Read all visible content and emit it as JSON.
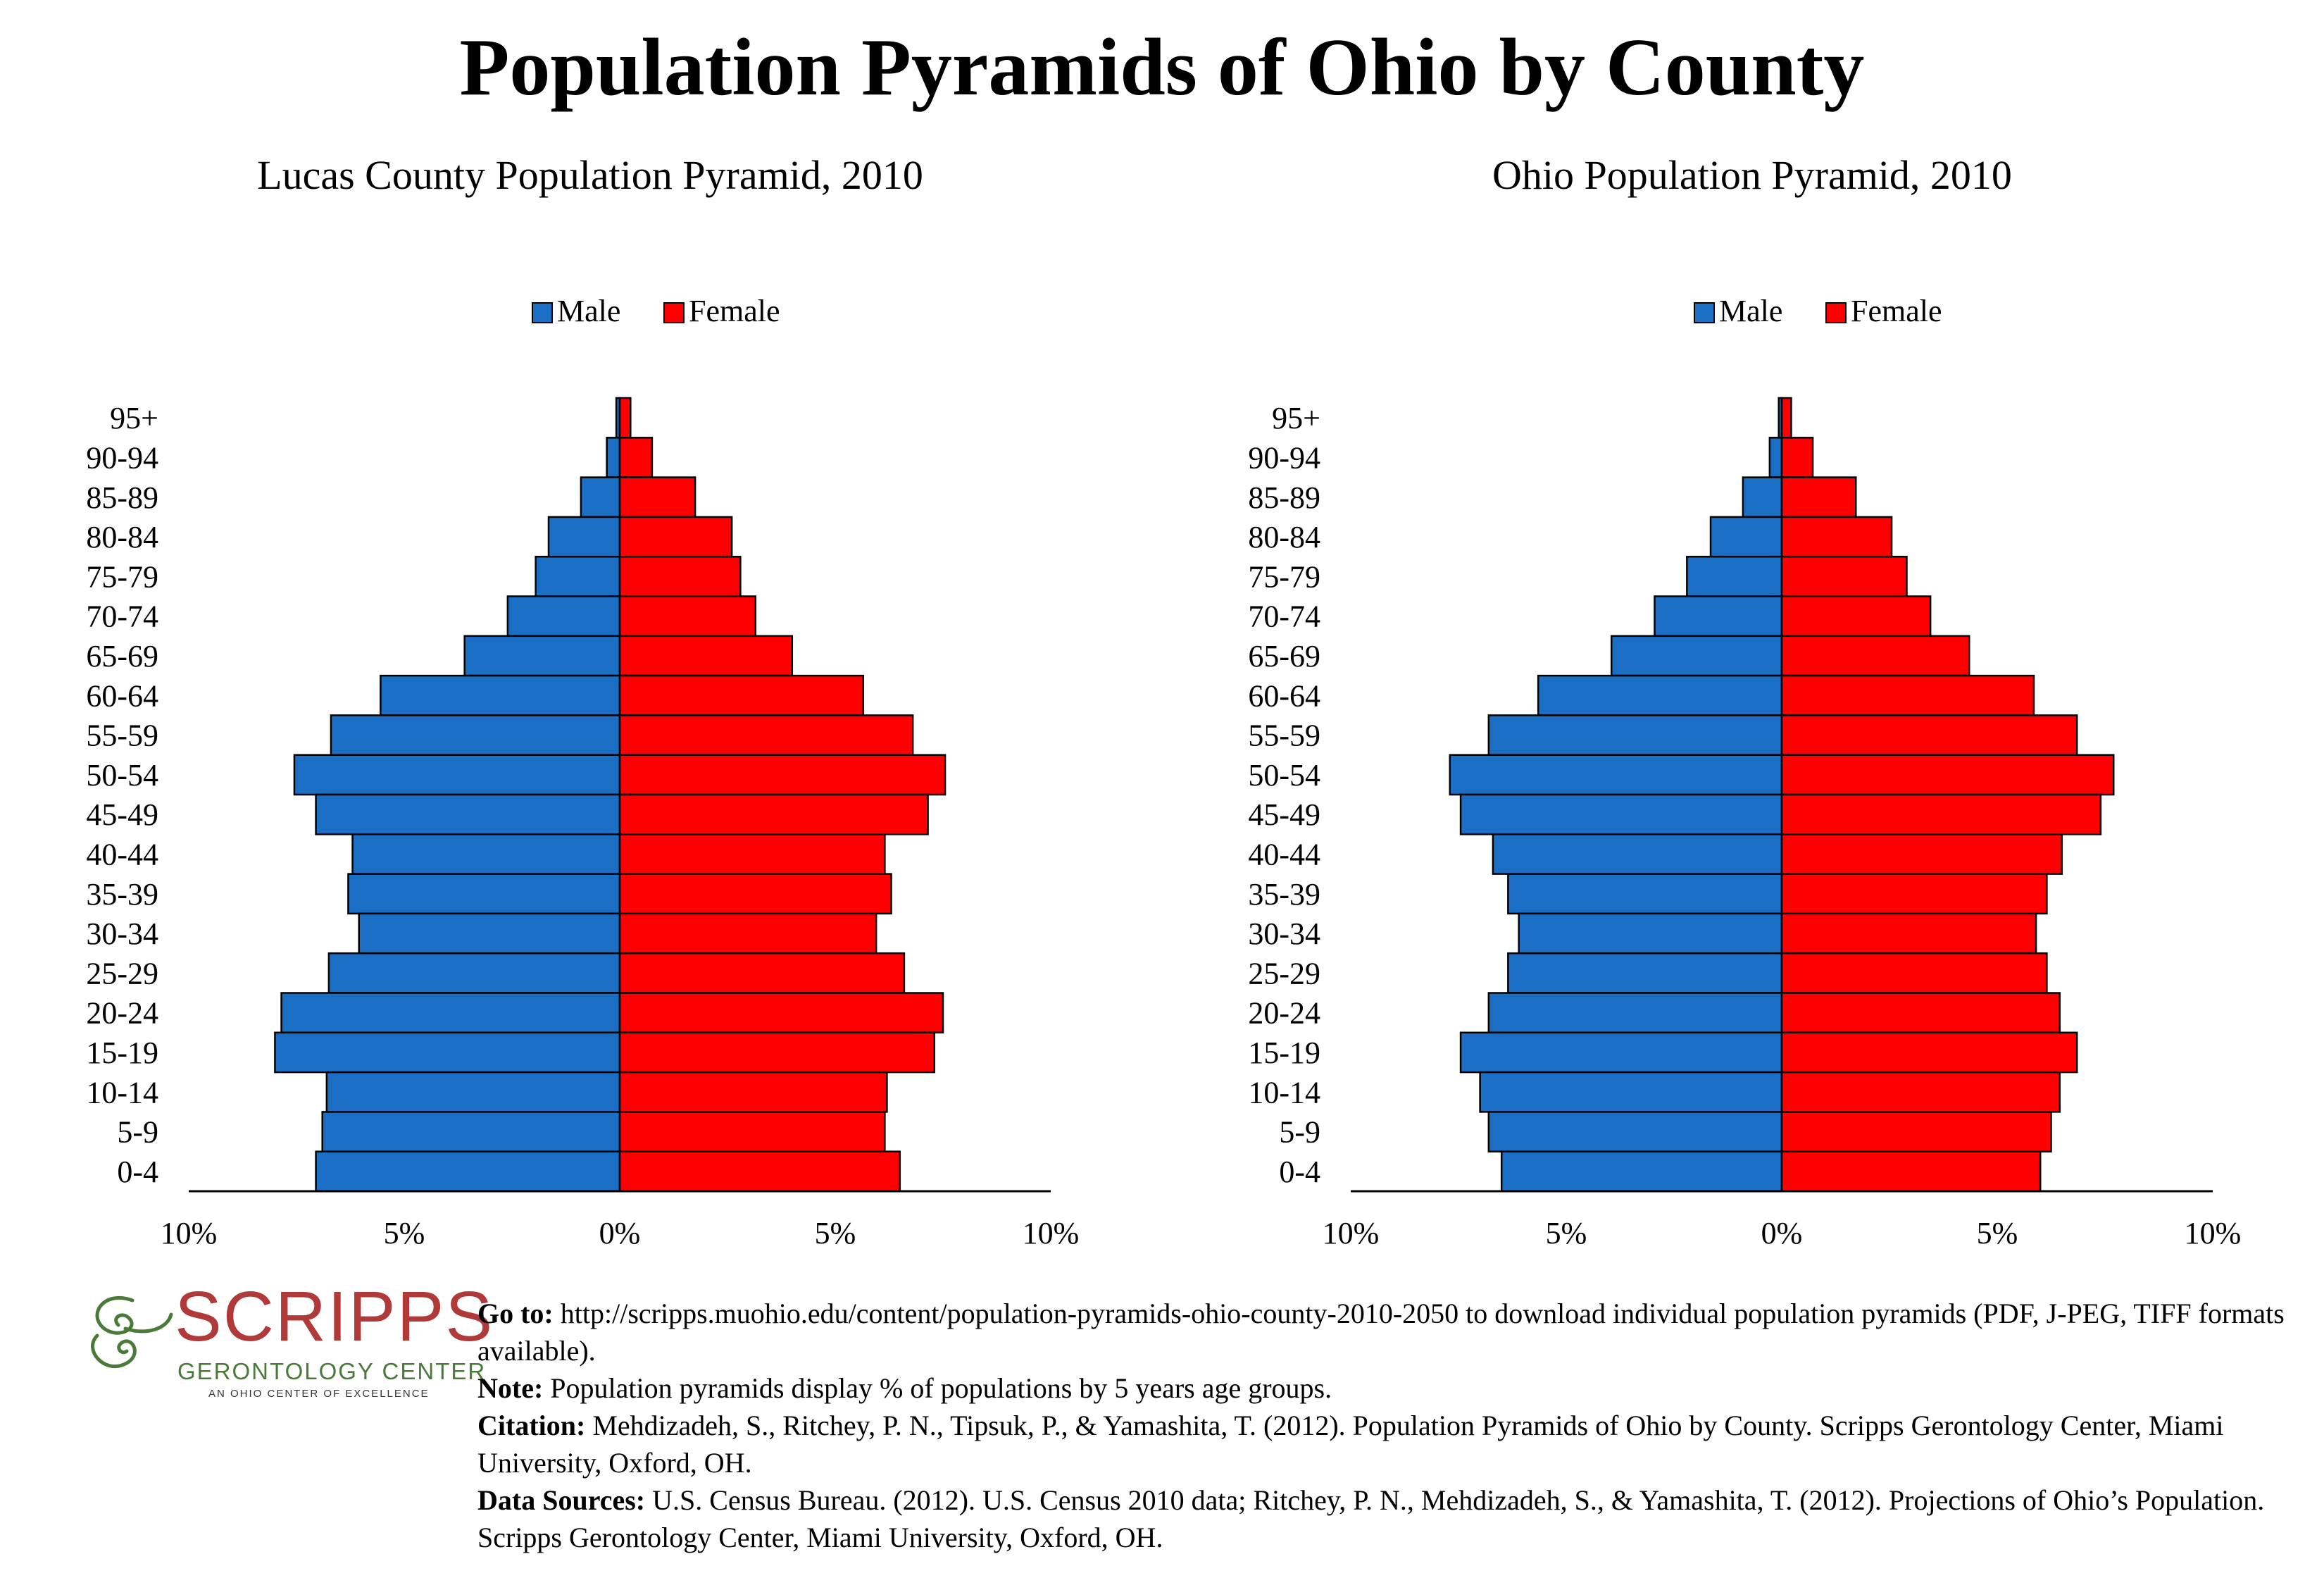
{
  "page": {
    "title": "Population Pyramids of Ohio by County"
  },
  "colors": {
    "male": "#1a6fc4",
    "female": "#ff0000",
    "axis": "#000000"
  },
  "chart_data": [
    {
      "type": "bar",
      "orientation": "horizontal-pyramid",
      "title": "Lucas County Population Pyramid, 2010",
      "legend": {
        "position": "top",
        "entries": [
          "Male",
          "Female"
        ]
      },
      "categories": [
        "95+",
        "90-94",
        "85-89",
        "80-84",
        "75-79",
        "70-74",
        "65-69",
        "60-64",
        "55-59",
        "50-54",
        "45-49",
        "40-44",
        "35-39",
        "30-34",
        "25-29",
        "20-24",
        "15-19",
        "10-14",
        "5-9",
        "0-4"
      ],
      "series": [
        {
          "name": "Male",
          "values": [
            0.08,
            0.3,
            0.9,
            1.65,
            1.95,
            2.6,
            3.6,
            5.55,
            6.7,
            7.55,
            7.05,
            6.2,
            6.3,
            6.05,
            6.75,
            7.85,
            8.0,
            6.8,
            6.9,
            7.05
          ]
        },
        {
          "name": "Female",
          "values": [
            0.25,
            0.75,
            1.75,
            2.6,
            2.8,
            3.15,
            4.0,
            5.65,
            6.8,
            7.55,
            7.15,
            6.15,
            6.3,
            5.95,
            6.6,
            7.5,
            7.3,
            6.2,
            6.15,
            6.5
          ]
        }
      ],
      "xlim": [
        -10,
        10
      ],
      "x_ticks": [
        "10%",
        "5%",
        "0%",
        "5%",
        "10%"
      ]
    },
    {
      "type": "bar",
      "orientation": "horizontal-pyramid",
      "title": "Ohio Population Pyramid, 2010",
      "legend": {
        "position": "top",
        "entries": [
          "Male",
          "Female"
        ]
      },
      "categories": [
        "95+",
        "90-94",
        "85-89",
        "80-84",
        "75-79",
        "70-74",
        "65-69",
        "60-64",
        "55-59",
        "50-54",
        "45-49",
        "40-44",
        "35-39",
        "30-34",
        "25-29",
        "20-24",
        "15-19",
        "10-14",
        "5-9",
        "0-4"
      ],
      "series": [
        {
          "name": "Male",
          "values": [
            0.07,
            0.28,
            0.9,
            1.65,
            2.2,
            2.95,
            3.95,
            5.65,
            6.8,
            7.7,
            7.45,
            6.7,
            6.35,
            6.1,
            6.35,
            6.8,
            7.45,
            7.0,
            6.8,
            6.5
          ]
        },
        {
          "name": "Female",
          "values": [
            0.22,
            0.72,
            1.72,
            2.55,
            2.9,
            3.45,
            4.35,
            5.85,
            6.85,
            7.7,
            7.4,
            6.5,
            6.15,
            5.9,
            6.15,
            6.45,
            6.85,
            6.45,
            6.25,
            6.0
          ]
        }
      ],
      "xlim": [
        -10,
        10
      ],
      "x_ticks": [
        "10%",
        "5%",
        "0%",
        "5%",
        "10%"
      ]
    }
  ],
  "logo": {
    "wordmark": "SCRIPPS",
    "subtitle": "GERONTOLOGY CENTER",
    "tagline": "AN OHIO CENTER OF EXCELLENCE"
  },
  "notes": {
    "goto_label": "Go to:",
    "goto_text": "http://scripps.muohio.edu/content/population-pyramids-ohio-county-2010-2050 to download individual population pyramids (PDF, J-PEG, TIFF formats available).",
    "note_label": "Note:",
    "note_text": "Population pyramids display % of populations by 5 years age groups.",
    "citation_label": "Citation:",
    "citation_text": "Mehdizadeh, S., Ritchey, P. N., Tipsuk, P., & Yamashita, T. (2012). Population Pyramids of Ohio by County. Scripps Gerontology Center, Miami University, Oxford, OH.",
    "sources_label": "Data Sources:",
    "sources_text": "U.S. Census Bureau. (2012). U.S. Census 2010 data; Ritchey, P. N., Mehdizadeh, S., & Yamashita, T. (2012). Projections of Ohio’s Population. Scripps Gerontology Center, Miami University, Oxford, OH."
  }
}
